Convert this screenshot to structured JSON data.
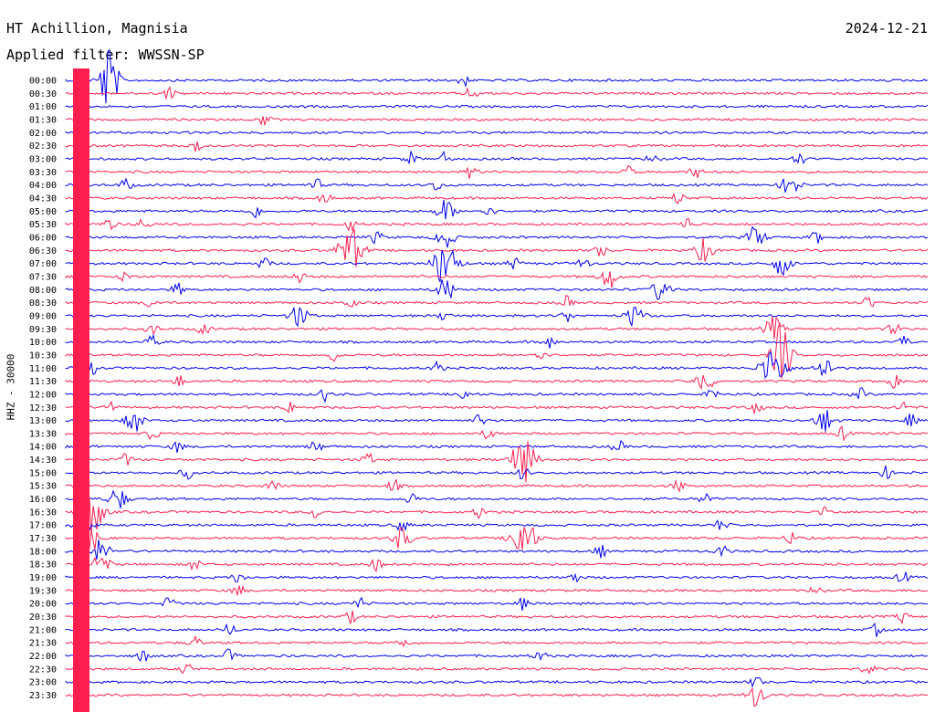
{
  "header": {
    "station": "HT Achillion, Magnisia",
    "date": "2024-12-21",
    "filter": "Applied filter: WWSSN-SP"
  },
  "chart_data": {
    "type": "line",
    "title": "HT Achillion, Magnisia",
    "subtitle": "Applied filter: WWSSN-SP",
    "date": "2024-12-21",
    "ylabel": "HHZ - 30000",
    "grid": false,
    "trace_colors": [
      "#0000ee",
      "#ff1f4f"
    ],
    "rows": [
      {
        "label": "00:00",
        "events": [
          {
            "t": 0.05,
            "amp": "extreme"
          },
          {
            "t": 0.46,
            "amp": "small"
          }
        ]
      },
      {
        "label": "00:30",
        "events": [
          {
            "t": 0.12,
            "amp": "small"
          },
          {
            "t": 0.47,
            "amp": "small"
          }
        ]
      },
      {
        "label": "01:00",
        "events": []
      },
      {
        "label": "01:30",
        "events": [
          {
            "t": 0.23,
            "amp": "small"
          }
        ]
      },
      {
        "label": "02:00",
        "events": []
      },
      {
        "label": "02:30",
        "events": [
          {
            "t": 0.15,
            "amp": "small"
          }
        ]
      },
      {
        "label": "03:00",
        "events": [
          {
            "t": 0.4,
            "amp": "small"
          },
          {
            "t": 0.44,
            "amp": "small"
          },
          {
            "t": 0.68,
            "amp": "small"
          },
          {
            "t": 0.85,
            "amp": "small"
          }
        ]
      },
      {
        "label": "03:30",
        "events": [
          {
            "t": 0.47,
            "amp": "small"
          },
          {
            "t": 0.65,
            "amp": "small"
          },
          {
            "t": 0.73,
            "amp": "small"
          }
        ]
      },
      {
        "label": "04:00",
        "events": [
          {
            "t": 0.07,
            "amp": "small"
          },
          {
            "t": 0.29,
            "amp": "small"
          },
          {
            "t": 0.43,
            "amp": "small"
          },
          {
            "t": 0.84,
            "amp": "medium"
          }
        ]
      },
      {
        "label": "04:30",
        "events": [
          {
            "t": 0.3,
            "amp": "small"
          },
          {
            "t": 0.71,
            "amp": "small"
          }
        ]
      },
      {
        "label": "05:00",
        "events": [
          {
            "t": 0.22,
            "amp": "small"
          },
          {
            "t": 0.44,
            "amp": "medium"
          },
          {
            "t": 0.49,
            "amp": "small"
          }
        ]
      },
      {
        "label": "05:30",
        "events": [
          {
            "t": 0.05,
            "amp": "small"
          },
          {
            "t": 0.09,
            "amp": "small"
          },
          {
            "t": 0.33,
            "amp": "small"
          },
          {
            "t": 0.72,
            "amp": "small"
          }
        ]
      },
      {
        "label": "06:00",
        "events": [
          {
            "t": 0.36,
            "amp": "small"
          },
          {
            "t": 0.44,
            "amp": "medium"
          },
          {
            "t": 0.8,
            "amp": "medium"
          },
          {
            "t": 0.87,
            "amp": "small"
          }
        ]
      },
      {
        "label": "06:30",
        "events": [
          {
            "t": 0.33,
            "amp": "large"
          },
          {
            "t": 0.62,
            "amp": "small"
          },
          {
            "t": 0.74,
            "amp": "medium"
          }
        ]
      },
      {
        "label": "07:00",
        "events": [
          {
            "t": 0.23,
            "amp": "small"
          },
          {
            "t": 0.44,
            "amp": "large"
          },
          {
            "t": 0.52,
            "amp": "small"
          },
          {
            "t": 0.6,
            "amp": "small"
          },
          {
            "t": 0.83,
            "amp": "medium"
          }
        ]
      },
      {
        "label": "07:30",
        "events": [
          {
            "t": 0.07,
            "amp": "small"
          },
          {
            "t": 0.27,
            "amp": "small"
          },
          {
            "t": 0.63,
            "amp": "medium"
          }
        ]
      },
      {
        "label": "08:00",
        "events": [
          {
            "t": 0.13,
            "amp": "small"
          },
          {
            "t": 0.44,
            "amp": "medium"
          },
          {
            "t": 0.69,
            "amp": "medium"
          }
        ]
      },
      {
        "label": "08:30",
        "events": [
          {
            "t": 0.1,
            "amp": "small"
          },
          {
            "t": 0.33,
            "amp": "small"
          },
          {
            "t": 0.58,
            "amp": "small"
          },
          {
            "t": 0.93,
            "amp": "small"
          }
        ]
      },
      {
        "label": "09:00",
        "events": [
          {
            "t": 0.27,
            "amp": "medium"
          },
          {
            "t": 0.44,
            "amp": "small"
          },
          {
            "t": 0.58,
            "amp": "small"
          },
          {
            "t": 0.66,
            "amp": "medium"
          }
        ]
      },
      {
        "label": "09:30",
        "events": [
          {
            "t": 0.1,
            "amp": "small"
          },
          {
            "t": 0.16,
            "amp": "small"
          },
          {
            "t": 0.82,
            "amp": "medium"
          },
          {
            "t": 0.96,
            "amp": "small"
          }
        ]
      },
      {
        "label": "10:00",
        "events": [
          {
            "t": 0.1,
            "amp": "small"
          },
          {
            "t": 0.56,
            "amp": "small"
          },
          {
            "t": 0.97,
            "amp": "small"
          }
        ]
      },
      {
        "label": "10:30",
        "events": [
          {
            "t": 0.31,
            "amp": "small"
          },
          {
            "t": 0.55,
            "amp": "small"
          },
          {
            "t": 0.83,
            "amp": "extreme"
          }
        ]
      },
      {
        "label": "11:00",
        "events": [
          {
            "t": 0.03,
            "amp": "small"
          },
          {
            "t": 0.43,
            "amp": "small"
          },
          {
            "t": 0.82,
            "amp": "large"
          },
          {
            "t": 0.88,
            "amp": "medium"
          }
        ]
      },
      {
        "label": "11:30",
        "events": [
          {
            "t": 0.13,
            "amp": "small"
          },
          {
            "t": 0.74,
            "amp": "medium"
          },
          {
            "t": 0.96,
            "amp": "small"
          }
        ]
      },
      {
        "label": "12:00",
        "events": [
          {
            "t": 0.3,
            "amp": "small"
          },
          {
            "t": 0.46,
            "amp": "small"
          },
          {
            "t": 0.75,
            "amp": "small"
          },
          {
            "t": 0.92,
            "amp": "small"
          }
        ]
      },
      {
        "label": "12:30",
        "events": [
          {
            "t": 0.05,
            "amp": "small"
          },
          {
            "t": 0.26,
            "amp": "small"
          },
          {
            "t": 0.8,
            "amp": "small"
          },
          {
            "t": 0.97,
            "amp": "small"
          }
        ]
      },
      {
        "label": "13:00",
        "events": [
          {
            "t": 0.08,
            "amp": "medium"
          },
          {
            "t": 0.48,
            "amp": "small"
          },
          {
            "t": 0.88,
            "amp": "medium"
          },
          {
            "t": 0.98,
            "amp": "small"
          }
        ]
      },
      {
        "label": "13:30",
        "events": [
          {
            "t": 0.1,
            "amp": "small"
          },
          {
            "t": 0.49,
            "amp": "small"
          },
          {
            "t": 0.9,
            "amp": "small"
          }
        ]
      },
      {
        "label": "14:00",
        "events": [
          {
            "t": 0.13,
            "amp": "small"
          },
          {
            "t": 0.29,
            "amp": "small"
          },
          {
            "t": 0.64,
            "amp": "small"
          }
        ]
      },
      {
        "label": "14:30",
        "events": [
          {
            "t": 0.07,
            "amp": "small"
          },
          {
            "t": 0.35,
            "amp": "small"
          },
          {
            "t": 0.53,
            "amp": "large"
          }
        ]
      },
      {
        "label": "15:00",
        "events": [
          {
            "t": 0.14,
            "amp": "small"
          },
          {
            "t": 0.53,
            "amp": "small"
          },
          {
            "t": 0.95,
            "amp": "small"
          }
        ]
      },
      {
        "label": "15:30",
        "events": [
          {
            "t": 0.24,
            "amp": "small"
          },
          {
            "t": 0.38,
            "amp": "small"
          },
          {
            "t": 0.71,
            "amp": "small"
          }
        ]
      },
      {
        "label": "16:00",
        "events": [
          {
            "t": 0.06,
            "amp": "medium"
          },
          {
            "t": 0.4,
            "amp": "small"
          },
          {
            "t": 0.74,
            "amp": "small"
          }
        ]
      },
      {
        "label": "16:30",
        "events": [
          {
            "t": 0.03,
            "amp": "large"
          },
          {
            "t": 0.29,
            "amp": "small"
          },
          {
            "t": 0.48,
            "amp": "small"
          },
          {
            "t": 0.88,
            "amp": "small"
          }
        ]
      },
      {
        "label": "17:00",
        "events": [
          {
            "t": 0.02,
            "amp": "medium"
          },
          {
            "t": 0.39,
            "amp": "small"
          },
          {
            "t": 0.76,
            "amp": "small"
          }
        ]
      },
      {
        "label": "17:30",
        "events": [
          {
            "t": 0.03,
            "amp": "medium"
          },
          {
            "t": 0.39,
            "amp": "medium"
          },
          {
            "t": 0.53,
            "amp": "large"
          },
          {
            "t": 0.84,
            "amp": "small"
          }
        ]
      },
      {
        "label": "18:00",
        "events": [
          {
            "t": 0.04,
            "amp": "medium"
          },
          {
            "t": 0.62,
            "amp": "small"
          },
          {
            "t": 0.76,
            "amp": "small"
          }
        ]
      },
      {
        "label": "18:30",
        "events": [
          {
            "t": 0.04,
            "amp": "medium"
          },
          {
            "t": 0.15,
            "amp": "small"
          },
          {
            "t": 0.36,
            "amp": "small"
          }
        ]
      },
      {
        "label": "19:00",
        "events": [
          {
            "t": 0.2,
            "amp": "small"
          },
          {
            "t": 0.59,
            "amp": "small"
          },
          {
            "t": 0.97,
            "amp": "small"
          }
        ]
      },
      {
        "label": "19:30",
        "events": [
          {
            "t": 0.2,
            "amp": "small"
          },
          {
            "t": 0.87,
            "amp": "small"
          }
        ]
      },
      {
        "label": "20:00",
        "events": [
          {
            "t": 0.12,
            "amp": "small"
          },
          {
            "t": 0.34,
            "amp": "small"
          },
          {
            "t": 0.53,
            "amp": "small"
          }
        ]
      },
      {
        "label": "20:30",
        "events": [
          {
            "t": 0.33,
            "amp": "small"
          },
          {
            "t": 0.97,
            "amp": "small"
          }
        ]
      },
      {
        "label": "21:00",
        "events": [
          {
            "t": 0.19,
            "amp": "small"
          },
          {
            "t": 0.94,
            "amp": "small"
          }
        ]
      },
      {
        "label": "21:30",
        "events": [
          {
            "t": 0.15,
            "amp": "small"
          },
          {
            "t": 0.39,
            "amp": "small"
          }
        ]
      },
      {
        "label": "22:00",
        "events": [
          {
            "t": 0.09,
            "amp": "small"
          },
          {
            "t": 0.19,
            "amp": "small"
          },
          {
            "t": 0.55,
            "amp": "small"
          }
        ]
      },
      {
        "label": "22:30",
        "events": [
          {
            "t": 0.14,
            "amp": "small"
          },
          {
            "t": 0.93,
            "amp": "small"
          }
        ]
      },
      {
        "label": "23:00",
        "events": [
          {
            "t": 0.8,
            "amp": "small"
          }
        ]
      },
      {
        "label": "23:30",
        "events": [
          {
            "t": 0.8,
            "amp": "medium"
          }
        ]
      }
    ]
  }
}
